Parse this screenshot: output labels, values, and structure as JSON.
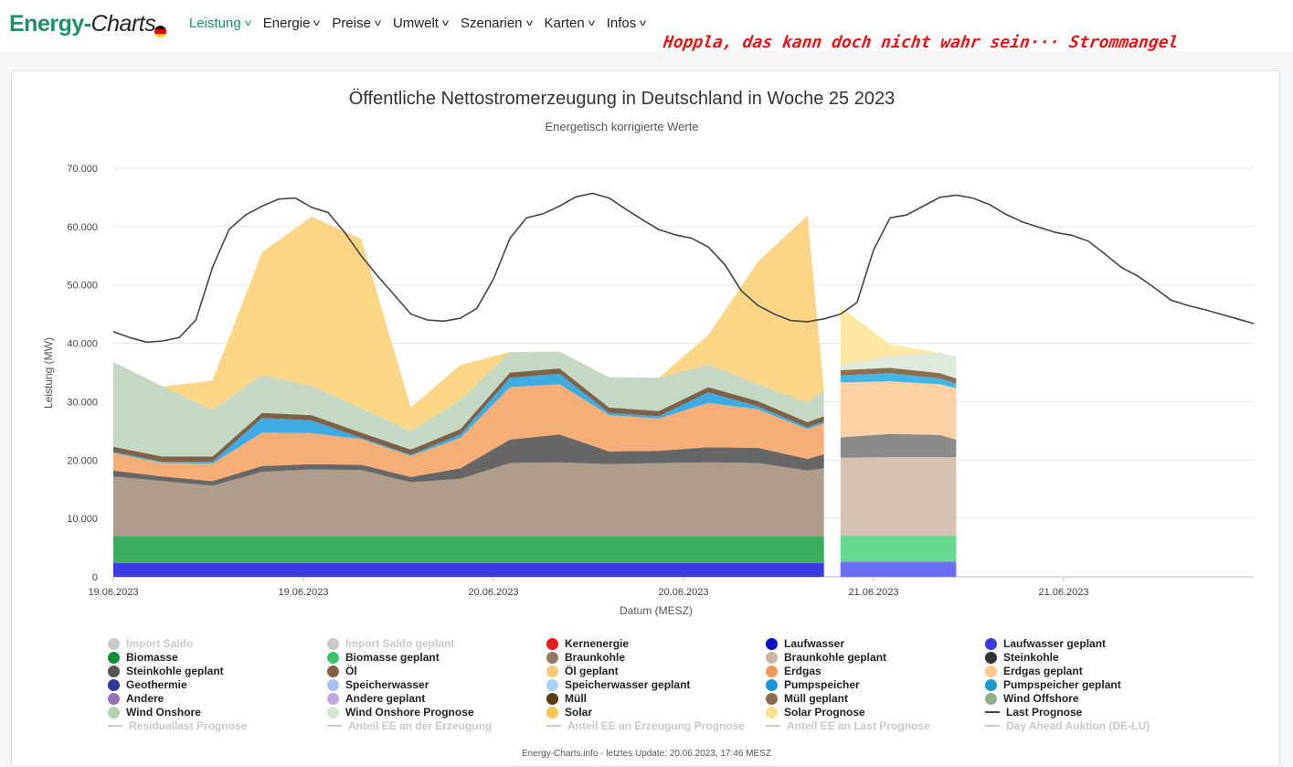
{
  "header": {
    "logo_part1": "Energy-",
    "logo_part2": "Charts",
    "nav": [
      {
        "label": "Leistung",
        "active": true
      },
      {
        "label": "Energie",
        "active": false
      },
      {
        "label": "Preise",
        "active": false
      },
      {
        "label": "Umwelt",
        "active": false
      },
      {
        "label": "Szenarien",
        "active": false
      },
      {
        "label": "Karten",
        "active": false
      },
      {
        "label": "Infos",
        "active": false
      }
    ],
    "annotation": "Hoppla, das kann doch nicht wahr sein··· Strommangel"
  },
  "colors": {
    "brand": "#1c8f6b",
    "annotation": "#e01818"
  },
  "footer": "Energy-Charts.info - letztes Update: 20.06.2023, 17:46 MESZ",
  "chart_data": {
    "type": "area",
    "title": "Öffentliche Nettostromerzeugung in Deutschland in Woche 25 2023",
    "subtitle": "Energetisch korrigierte Werte",
    "xlabel": "Datum (MESZ)",
    "ylabel": "Leistung (MW)",
    "ylim": [
      0,
      70000
    ],
    "yticks": [
      "0",
      "10.000",
      "20.000",
      "30.000",
      "40.000",
      "50.000",
      "60.000",
      "70.000"
    ],
    "xticks": [
      "19.06.2023",
      "19.06.2023",
      "20.06.2023",
      "20.06.2023",
      "21.06.2023",
      "21.06.2023"
    ],
    "xlim_hours": [
      0,
      69
    ],
    "grid": true,
    "legend_position": "bottom",
    "stack_actual": {
      "x_hours": [
        0,
        3,
        6,
        9,
        12,
        15,
        18,
        21,
        24,
        27,
        30,
        33,
        36,
        39,
        42,
        43
      ],
      "series": [
        {
          "name": "Laufwasser",
          "color": "#3b3be0",
          "values": [
            2400,
            2400,
            2400,
            2400,
            2400,
            2400,
            2400,
            2400,
            2400,
            2400,
            2400,
            2400,
            2400,
            2400,
            2400,
            2400
          ]
        },
        {
          "name": "Biomasse",
          "color": "#3aad5e",
          "values": [
            4600,
            4600,
            4600,
            4600,
            4600,
            4600,
            4600,
            4600,
            4600,
            4600,
            4600,
            4600,
            4600,
            4600,
            4600,
            4600
          ]
        },
        {
          "name": "Braunkohle",
          "color": "#ae9c8c",
          "values": [
            10200,
            9400,
            8600,
            11000,
            11400,
            11300,
            9200,
            9800,
            12500,
            12600,
            12300,
            12500,
            12600,
            12500,
            11200,
            11600
          ]
        },
        {
          "name": "Steinkohle",
          "color": "#676767",
          "values": [
            1000,
            800,
            800,
            1000,
            900,
            900,
            900,
            1800,
            4000,
            4800,
            2200,
            2100,
            2600,
            2600,
            2000,
            2400
          ]
        },
        {
          "name": "Erdgas",
          "color": "#f7ad76",
          "values": [
            3000,
            2300,
            3000,
            5700,
            5300,
            4400,
            3600,
            5200,
            9000,
            8600,
            6200,
            5500,
            7600,
            6600,
            5100,
            5300
          ]
        },
        {
          "name": "Pumpspeicher",
          "color": "#3eace3",
          "values": [
            200,
            200,
            300,
            2500,
            2200,
            200,
            200,
            600,
            1600,
            1800,
            400,
            400,
            1800,
            500,
            300,
            300
          ]
        },
        {
          "name": "Öl",
          "color": "#7d6149",
          "values": [
            900,
            900,
            900,
            900,
            900,
            900,
            900,
            900,
            900,
            900,
            900,
            900,
            900,
            900,
            900,
            900
          ]
        },
        {
          "name": "Wind Onshore",
          "color": "#c5d8c3",
          "values": [
            14500,
            12000,
            8000,
            6500,
            5000,
            4200,
            3200,
            5000,
            3500,
            2900,
            5200,
            5700,
            3900,
            2900,
            3400,
            4500
          ]
        },
        {
          "name": "Solar",
          "color": "#fcd687",
          "values": [
            0,
            0,
            5000,
            21000,
            29000,
            29000,
            4000,
            6000,
            0,
            0,
            0,
            0,
            5000,
            21000,
            32000,
            0
          ]
        }
      ]
    },
    "stack_forecast": {
      "x_hours": [
        44,
        47,
        50,
        51
      ],
      "series": [
        {
          "name": "Laufwasser geplant",
          "color": "#6c6cf4",
          "values": [
            2600,
            2600,
            2600,
            2600
          ]
        },
        {
          "name": "Biomasse geplant",
          "color": "#66d88f",
          "values": [
            4500,
            4500,
            4500,
            4500
          ]
        },
        {
          "name": "Braunkohle geplant",
          "color": "#d4c3b4",
          "values": [
            13300,
            13400,
            13400,
            13400
          ]
        },
        {
          "name": "Steinkohle geplant",
          "color": "#8a8a8a",
          "values": [
            3500,
            4000,
            3800,
            3000
          ]
        },
        {
          "name": "Erdgas geplant",
          "color": "#fcd2a4",
          "values": [
            9400,
            9000,
            8700,
            8800
          ]
        },
        {
          "name": "Pumpspeicher geplant",
          "color": "#43b6e6",
          "values": [
            1200,
            1400,
            1000,
            800
          ]
        },
        {
          "name": "Müll geplant",
          "color": "#8b6d4f",
          "values": [
            900,
            900,
            900,
            900
          ]
        },
        {
          "name": "Wind Onshore Prognose",
          "color": "#deeadb",
          "values": [
            800,
            2000,
            3500,
            3700
          ]
        },
        {
          "name": "Solar Prognose",
          "color": "#fde8a3",
          "values": [
            10000,
            2000,
            0,
            0
          ]
        }
      ]
    },
    "load_line": {
      "name": "Last Prognose",
      "color": "#444444",
      "x_hours": [
        0,
        1,
        2,
        3,
        4,
        5,
        6,
        7,
        8,
        9,
        10,
        11,
        12,
        13,
        14,
        15,
        16,
        17,
        18,
        19,
        20,
        21,
        22,
        23,
        24,
        25,
        26,
        27,
        28,
        29,
        30,
        31,
        32,
        33,
        34,
        35,
        36,
        37,
        38,
        39,
        40,
        41,
        42,
        43,
        44,
        45,
        46,
        47,
        48,
        49,
        50,
        51,
        52,
        53,
        54,
        55,
        56,
        57,
        58,
        59,
        60,
        61,
        62,
        63,
        64,
        65,
        66,
        67,
        68,
        69
      ],
      "values": [
        42000,
        41000,
        40200,
        40400,
        41000,
        44000,
        53000,
        59500,
        62000,
        63500,
        64700,
        64900,
        63300,
        62400,
        59000,
        55000,
        51500,
        48300,
        45000,
        44000,
        43800,
        44300,
        46000,
        51000,
        58000,
        61500,
        62200,
        63500,
        65100,
        65700,
        64900,
        63000,
        61200,
        59500,
        58600,
        58000,
        56500,
        53500,
        49000,
        46500,
        45000,
        43900,
        43700,
        44200,
        45000,
        47000,
        56000,
        61500,
        62000,
        63500,
        65000,
        65400,
        64900,
        63800,
        62100,
        60800,
        59900,
        59000,
        58500,
        57500,
        55300,
        53000,
        51500,
        49500,
        47400,
        46500,
        45800,
        45000,
        44200,
        43400
      ]
    }
  },
  "legend": [
    {
      "label": "Import Saldo",
      "color": "#c9c9c9",
      "shape": "dot",
      "off": true
    },
    {
      "label": "Import Saldo geplant",
      "color": "#c9c9c9",
      "shape": "dot",
      "off": true
    },
    {
      "label": "Kernenergie",
      "color": "#e81919",
      "shape": "dot",
      "off": false
    },
    {
      "label": "Laufwasser",
      "color": "#1010c8",
      "shape": "dot",
      "off": false
    },
    {
      "label": "Laufwasser geplant",
      "color": "#3b3be0",
      "shape": "dot",
      "off": false
    },
    {
      "label": "Biomasse",
      "color": "#138c38",
      "shape": "dot",
      "off": false
    },
    {
      "label": "Biomasse geplant",
      "color": "#3cc26a",
      "shape": "dot",
      "off": false
    },
    {
      "label": "Braunkohle",
      "color": "#8f7a68",
      "shape": "dot",
      "off": false
    },
    {
      "label": "Braunkohle geplant",
      "color": "#c9b6a5",
      "shape": "dot",
      "off": false
    },
    {
      "label": "Steinkohle",
      "color": "#333333",
      "shape": "dot",
      "off": false
    },
    {
      "label": "Steinkohle geplant",
      "color": "#555555",
      "shape": "dot",
      "off": false
    },
    {
      "label": "Öl",
      "color": "#7d6149",
      "shape": "dot",
      "off": false
    },
    {
      "label": "Öl geplant",
      "color": "#f7c979",
      "shape": "dot",
      "off": false
    },
    {
      "label": "Erdgas",
      "color": "#f49a58",
      "shape": "dot",
      "off": false
    },
    {
      "label": "Erdgas geplant",
      "color": "#fbc989",
      "shape": "dot",
      "off": false
    },
    {
      "label": "Geothermie",
      "color": "#2a3b96",
      "shape": "dot",
      "off": false
    },
    {
      "label": "Speicherwasser",
      "color": "#a9c1f1",
      "shape": "dot",
      "off": false
    },
    {
      "label": "Speicherwasser geplant",
      "color": "#a6d4f6",
      "shape": "dot",
      "off": false
    },
    {
      "label": "Pumpspeicher",
      "color": "#1897d6",
      "shape": "dot",
      "off": false
    },
    {
      "label": "Pumpspeicher geplant",
      "color": "#1a9ccc",
      "shape": "dot",
      "off": false
    },
    {
      "label": "Andere",
      "color": "#9472b3",
      "shape": "dot",
      "off": false
    },
    {
      "label": "Andere geplant",
      "color": "#c2a7e0",
      "shape": "dot",
      "off": false
    },
    {
      "label": "Müll",
      "color": "#5a3a17",
      "shape": "dot",
      "off": false
    },
    {
      "label": "Müll geplant",
      "color": "#8b6d4f",
      "shape": "dot",
      "off": false
    },
    {
      "label": "Wind Offshore",
      "color": "#8fae8a",
      "shape": "dot",
      "off": false
    },
    {
      "label": "Wind Onshore",
      "color": "#b5d0b3",
      "shape": "dot",
      "off": false
    },
    {
      "label": "Wind Onshore Prognose",
      "color": "#d4e8d1",
      "shape": "dot",
      "off": false
    },
    {
      "label": "Solar",
      "color": "#f6c554",
      "shape": "dot",
      "off": false
    },
    {
      "label": "Solar Prognose",
      "color": "#fbe18f",
      "shape": "dot",
      "off": false
    },
    {
      "label": "Last Prognose",
      "color": "#444444",
      "shape": "line",
      "off": false
    },
    {
      "label": "Residuallast Prognose",
      "color": "#cccccc",
      "shape": "line",
      "off": true
    },
    {
      "label": "Anteil EE an der Erzeugung",
      "color": "#cccccc",
      "shape": "line",
      "off": true
    },
    {
      "label": "Anteil EE an Erzeugung Prognose",
      "color": "#cccccc",
      "shape": "line",
      "off": true
    },
    {
      "label": "Anteil EE an Last Prognose",
      "color": "#cccccc",
      "shape": "line",
      "off": true
    },
    {
      "label": "Day Ahead Auktion (DE-LU)",
      "color": "#cccccc",
      "shape": "line",
      "off": true
    }
  ]
}
